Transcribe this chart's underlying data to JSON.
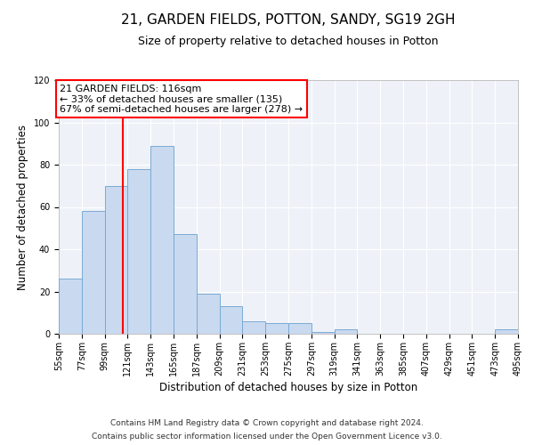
{
  "title": "21, GARDEN FIELDS, POTTON, SANDY, SG19 2GH",
  "subtitle": "Size of property relative to detached houses in Potton",
  "xlabel": "Distribution of detached houses by size in Potton",
  "ylabel": "Number of detached properties",
  "bin_edges": [
    55,
    77,
    99,
    121,
    143,
    165,
    187,
    209,
    231,
    253,
    275,
    297,
    319,
    341,
    363,
    385,
    407,
    429,
    451,
    473,
    495
  ],
  "bar_heights": [
    26,
    58,
    70,
    78,
    89,
    47,
    19,
    13,
    6,
    5,
    5,
    1,
    2,
    0,
    0,
    0,
    0,
    0,
    0,
    2
  ],
  "bar_color": "#c9d9f0",
  "bar_edgecolor": "#7aaad4",
  "vline_x": 116,
  "vline_color": "red",
  "annotation_text": "21 GARDEN FIELDS: 116sqm\n← 33% of detached houses are smaller (135)\n67% of semi-detached houses are larger (278) →",
  "annotation_box_edgecolor": "red",
  "annotation_box_facecolor": "white",
  "tick_labels": [
    "55sqm",
    "77sqm",
    "99sqm",
    "121sqm",
    "143sqm",
    "165sqm",
    "187sqm",
    "209sqm",
    "231sqm",
    "253sqm",
    "275sqm",
    "297sqm",
    "319sqm",
    "341sqm",
    "363sqm",
    "385sqm",
    "407sqm",
    "429sqm",
    "451sqm",
    "473sqm",
    "495sqm"
  ],
  "ylim": [
    0,
    120
  ],
  "yticks": [
    0,
    20,
    40,
    60,
    80,
    100,
    120
  ],
  "bg_color": "#eef2f8",
  "footer_line1": "Contains HM Land Registry data © Crown copyright and database right 2024.",
  "footer_line2": "Contains public sector information licensed under the Open Government Licence v3.0.",
  "title_fontsize": 11,
  "subtitle_fontsize": 9,
  "axis_label_fontsize": 8.5,
  "tick_fontsize": 7,
  "annotation_fontsize": 8
}
